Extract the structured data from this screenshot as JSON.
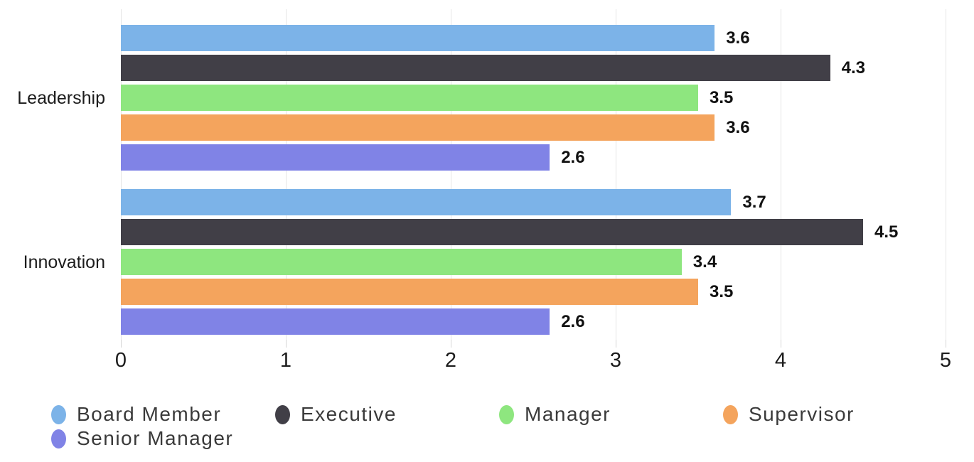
{
  "chart_data": {
    "type": "bar",
    "orientation": "horizontal",
    "title": "",
    "categories": [
      "Leadership",
      "Innovation"
    ],
    "series": [
      {
        "name": "Board Member",
        "color": "#7cb3e8",
        "values": [
          3.6,
          3.7
        ]
      },
      {
        "name": "Executive",
        "color": "#413f47",
        "values": [
          4.3,
          4.5
        ]
      },
      {
        "name": "Manager",
        "color": "#8ee67f",
        "values": [
          3.5,
          3.4
        ]
      },
      {
        "name": "Supervisor",
        "color": "#f4a45d",
        "values": [
          3.6,
          3.5
        ]
      },
      {
        "name": "Senior Manager",
        "color": "#8083e6",
        "values": [
          2.6,
          2.6
        ]
      }
    ],
    "value_labels": [
      [
        "3.6",
        "3.7"
      ],
      [
        "4.3",
        "4.5"
      ],
      [
        "3.5",
        "3.4"
      ],
      [
        "3.6",
        "3.5"
      ],
      [
        "2.6",
        "2.6"
      ]
    ],
    "xlim": [
      0,
      5
    ],
    "x_ticks": [
      "0",
      "1",
      "2",
      "3",
      "4",
      "5"
    ],
    "grid": true,
    "legend_position": "bottom"
  },
  "colors": {
    "background": "#ffffff",
    "gridline": "#e5e5e5",
    "axis_tick": "#d6d6d6",
    "axis_text": "#1c1c1c",
    "value_text": "#111111",
    "legend_text": "#3a3a3a"
  }
}
